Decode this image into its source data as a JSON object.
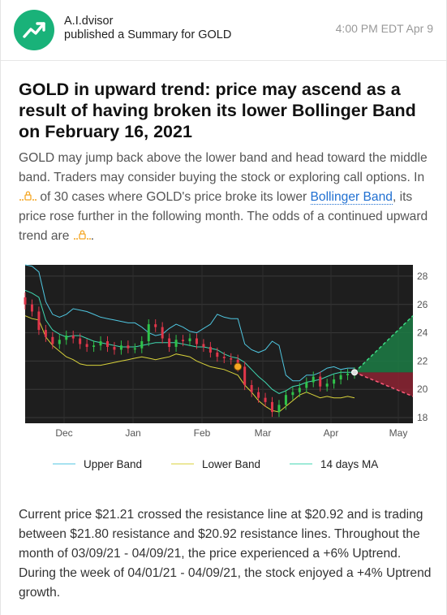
{
  "post": {
    "author": "A.I.dvisor",
    "action": "published a Summary for GOLD",
    "timestamp": "4:00 PM EDT Apr 9",
    "brand_color": "#19b279"
  },
  "article": {
    "title": "GOLD in upward trend: price may ascend as a result of having broken its lower Bollinger Band on February 16, 2021",
    "summary_part1": "GOLD may jump back above the lower band and head toward the middle band. Traders may consider buying the stock or exploring call options. In ",
    "summary_part2": " of 30 cases where GOLD's price broke its lower ",
    "summary_link": "Bollinger Band",
    "summary_part3": ", its price rose further in the following month. The odds of a continued upward trend are ",
    "summary_part4": ".",
    "closing": "Current price $21.21 crossed the resistance line at $20.92 and is trading between $21.80 resistance and $20.92 resistance lines. Throughout the month of 03/09/21 - 04/09/21, the price experienced a +6% Uptrend. During the week of 04/01/21 - 04/09/21, the stock enjoyed a +4% Uptrend growth."
  },
  "chart_data": {
    "type": "line",
    "x_tick_labels": [
      "Dec",
      "Jan",
      "Feb",
      "Mar",
      "Apr",
      "May"
    ],
    "y_tick_labels": [
      "28",
      "26",
      "24",
      "22",
      "20",
      "18"
    ],
    "ylim": [
      17.6,
      28.8
    ],
    "background": "#1e1e1e",
    "legend_position": "bottom",
    "legend": [
      {
        "name": "Upper Band",
        "color": "#4fc6e0"
      },
      {
        "name": "Lower Band",
        "color": "#d8d23a"
      },
      {
        "name": "14 days MA",
        "color": "#3fd6b0"
      }
    ],
    "upper_band": [
      28.8,
      28.7,
      28.3,
      26.2,
      25.3,
      25.1,
      25.3,
      25.7,
      25.6,
      25.5,
      25.3,
      25.1,
      25.0,
      24.9,
      24.8,
      24.7,
      24.7,
      24.4,
      24.0,
      23.8,
      23.9,
      24.3,
      24.6,
      24.4,
      24.1,
      24.0,
      24.3,
      24.6,
      25.3,
      25.1,
      25.0,
      25.0,
      23.2,
      22.8,
      22.6,
      22.8,
      23.4,
      23.1,
      21.0,
      20.6,
      20.6,
      21.0,
      21.0,
      21.2,
      21.5,
      21.6,
      21.4,
      21.5,
      21.5
    ],
    "ma14": [
      27.0,
      26.8,
      26.5,
      24.9,
      24.2,
      23.9,
      23.7,
      23.8,
      23.8,
      23.6,
      23.4,
      23.3,
      23.2,
      23.1,
      23.0,
      23.0,
      23.0,
      23.1,
      23.2,
      23.3,
      23.3,
      23.3,
      23.3,
      23.2,
      23.1,
      23.0,
      23.0,
      22.9,
      22.8,
      22.5,
      22.3,
      22.2,
      21.9,
      21.4,
      20.9,
      20.5,
      20.0,
      19.7,
      19.9,
      20.2,
      20.3,
      20.5,
      20.6,
      20.7,
      20.9,
      21.1,
      21.2,
      21.2,
      21.2
    ],
    "lower_band": [
      25.2,
      25.0,
      24.9,
      23.7,
      23.1,
      22.7,
      22.3,
      22.1,
      21.8,
      21.7,
      21.7,
      21.7,
      21.8,
      21.9,
      22.0,
      22.1,
      22.2,
      22.3,
      22.2,
      22.1,
      22.2,
      22.3,
      22.5,
      22.4,
      22.3,
      22.0,
      21.8,
      21.6,
      21.5,
      21.4,
      21.2,
      21.0,
      20.3,
      19.8,
      19.2,
      18.8,
      18.5,
      18.4,
      18.8,
      19.2,
      19.6,
      19.8,
      19.6,
      19.4,
      19.5,
      19.4,
      19.4,
      19.5,
      19.4
    ],
    "close_prices": [
      26.0,
      25.5,
      24.2,
      23.7,
      23.2,
      23.5,
      23.8,
      23.6,
      23.2,
      23.0,
      23.1,
      23.4,
      23.0,
      22.8,
      23.1,
      22.9,
      22.9,
      23.4,
      24.6,
      24.4,
      23.6,
      23.0,
      23.5,
      23.4,
      23.6,
      23.2,
      23.0,
      22.6,
      22.3,
      22.2,
      22.1,
      21.6,
      20.3,
      19.8,
      19.4,
      19.1,
      18.4,
      18.9,
      19.6,
      19.8,
      20.1,
      20.5,
      20.9,
      20.2,
      20.4,
      20.7,
      21.0,
      21.1,
      21.2
    ],
    "breakout_point": {
      "index": 31,
      "value": 21.6,
      "color": "#f5a623"
    },
    "current_point": {
      "index": 48,
      "value": 21.2
    },
    "projection": {
      "end_label": "May",
      "upper_target": 25.2,
      "lower_target": 19.5,
      "up_color": "#1c7c45",
      "down_color": "#8c2333"
    }
  }
}
